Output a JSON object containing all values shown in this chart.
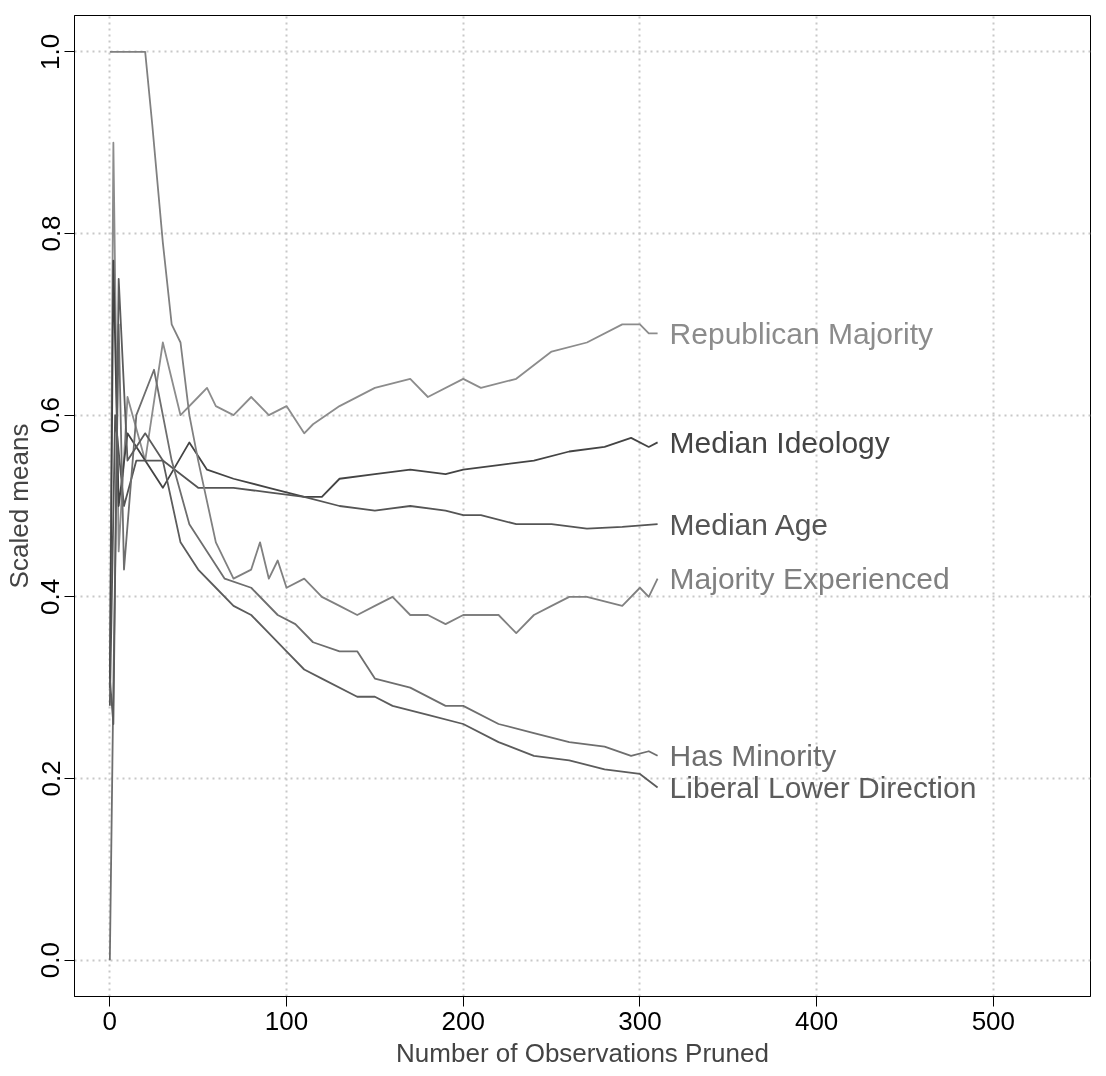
{
  "chart_data": {
    "type": "line",
    "xlabel": "Number of Observations Pruned",
    "ylabel": "Scaled means",
    "xlim": [
      -20,
      555
    ],
    "ylim": [
      -0.04,
      1.04
    ],
    "xticks": [
      0,
      100,
      200,
      300,
      400,
      500
    ],
    "yticks": [
      {
        "value": 0,
        "label": "0.0"
      },
      {
        "value": 0.2,
        "label": "0.2"
      },
      {
        "value": 0.4,
        "label": "0.4"
      },
      {
        "value": 0.6,
        "label": "0.6"
      },
      {
        "value": 0.8,
        "label": "0.8"
      },
      {
        "value": 1,
        "label": "1.0"
      }
    ],
    "grid": true,
    "legend": false,
    "line_style": "solid",
    "marker": "none",
    "series": [
      {
        "name": "Republican Majority",
        "color": "#8c8c8c",
        "x": [
          0,
          2,
          5,
          10,
          20,
          30,
          40,
          50,
          55,
          60,
          70,
          80,
          90,
          100,
          110,
          115,
          130,
          150,
          170,
          180,
          200,
          210,
          230,
          250,
          270,
          290,
          300,
          305,
          310
        ],
        "values": [
          0.3,
          0.9,
          0.45,
          0.62,
          0.55,
          0.68,
          0.6,
          0.62,
          0.63,
          0.61,
          0.6,
          0.62,
          0.6,
          0.61,
          0.58,
          0.59,
          0.61,
          0.63,
          0.64,
          0.62,
          0.64,
          0.63,
          0.64,
          0.67,
          0.68,
          0.7,
          0.7,
          0.69,
          0.69
        ]
      },
      {
        "name": "Median Ideology",
        "color": "#444444",
        "x": [
          0,
          2,
          5,
          10,
          20,
          30,
          45,
          55,
          70,
          90,
          110,
          120,
          130,
          150,
          170,
          190,
          200,
          220,
          240,
          260,
          280,
          295,
          305,
          310
        ],
        "values": [
          0.3,
          0.77,
          0.5,
          0.58,
          0.55,
          0.52,
          0.57,
          0.54,
          0.53,
          0.52,
          0.51,
          0.51,
          0.53,
          0.535,
          0.54,
          0.535,
          0.54,
          0.545,
          0.55,
          0.56,
          0.565,
          0.575,
          0.565,
          0.57
        ]
      },
      {
        "name": "Median Age",
        "color": "#555555",
        "x": [
          0,
          3,
          8,
          15,
          30,
          50,
          70,
          90,
          110,
          130,
          150,
          170,
          190,
          200,
          210,
          230,
          250,
          270,
          290,
          310
        ],
        "values": [
          0.28,
          0.6,
          0.5,
          0.55,
          0.55,
          0.52,
          0.52,
          0.515,
          0.51,
          0.5,
          0.495,
          0.5,
          0.495,
          0.49,
          0.49,
          0.48,
          0.48,
          0.475,
          0.477,
          0.48
        ]
      },
      {
        "name": "Majority Experienced",
        "color": "#808080",
        "x": [
          0,
          2,
          20,
          24,
          30,
          35,
          40,
          45,
          50,
          60,
          70,
          80,
          85,
          90,
          95,
          100,
          110,
          120,
          130,
          140,
          150,
          160,
          170,
          180,
          190,
          200,
          210,
          220,
          230,
          240,
          250,
          260,
          270,
          290,
          300,
          305,
          310
        ],
        "values": [
          1.0,
          1.0,
          1.0,
          0.92,
          0.79,
          0.7,
          0.68,
          0.6,
          0.55,
          0.46,
          0.42,
          0.43,
          0.46,
          0.42,
          0.44,
          0.41,
          0.42,
          0.4,
          0.39,
          0.38,
          0.39,
          0.4,
          0.38,
          0.38,
          0.37,
          0.38,
          0.38,
          0.38,
          0.36,
          0.38,
          0.39,
          0.4,
          0.4,
          0.39,
          0.41,
          0.4,
          0.42
        ]
      },
      {
        "name": "Has Minority",
        "color": "#6e6e6e",
        "x": [
          0,
          2,
          5,
          8,
          15,
          25,
          35,
          45,
          55,
          65,
          80,
          95,
          105,
          115,
          130,
          140,
          150,
          170,
          190,
          200,
          220,
          240,
          260,
          280,
          295,
          305,
          310
        ],
        "values": [
          0.0,
          0.3,
          0.7,
          0.43,
          0.6,
          0.65,
          0.55,
          0.48,
          0.45,
          0.42,
          0.41,
          0.38,
          0.37,
          0.35,
          0.34,
          0.34,
          0.31,
          0.3,
          0.28,
          0.28,
          0.26,
          0.25,
          0.24,
          0.235,
          0.225,
          0.23,
          0.225
        ]
      },
      {
        "name": "Liberal Lower Direction",
        "color": "#5c5c5c",
        "x": [
          0,
          2,
          5,
          10,
          20,
          30,
          40,
          50,
          60,
          70,
          80,
          90,
          100,
          110,
          120,
          140,
          150,
          160,
          180,
          200,
          220,
          240,
          260,
          280,
          300,
          310
        ],
        "values": [
          0.31,
          0.26,
          0.75,
          0.55,
          0.58,
          0.55,
          0.46,
          0.43,
          0.41,
          0.39,
          0.38,
          0.36,
          0.34,
          0.32,
          0.31,
          0.29,
          0.29,
          0.28,
          0.27,
          0.26,
          0.24,
          0.225,
          0.22,
          0.21,
          0.205,
          0.19
        ]
      }
    ]
  }
}
